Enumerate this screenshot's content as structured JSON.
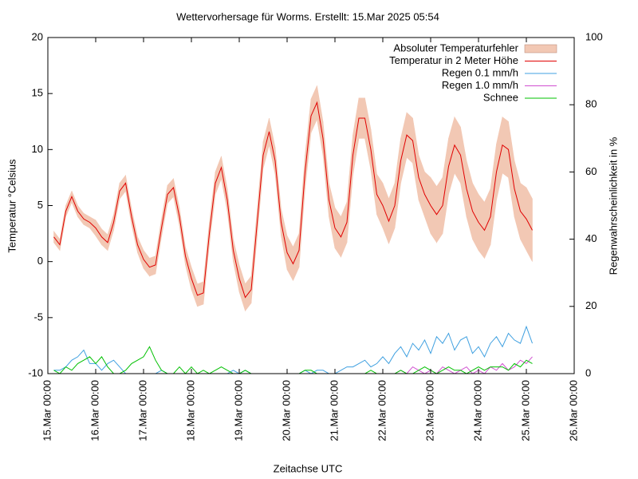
{
  "chart_data": {
    "type": "line",
    "title": "Wettervorhersage für Worms. Erstellt: 15.Mar 2025 05:54",
    "x_label": "Zeitachse UTC",
    "y_label": "Temperatur °Celsius",
    "y2_label": "Regenwahrscheinlichkeit in %",
    "xlim": [
      "15.Mar 00:00",
      "26.Mar 00:00"
    ],
    "xticks": [
      "15.Mar 00:00",
      "16.Mar 00:00",
      "17.Mar 00:00",
      "18.Mar 00:00",
      "19.Mar 00:00",
      "20.Mar 00:00",
      "21.Mar 00:00",
      "22.Mar 00:00",
      "23.Mar 00:00",
      "24.Mar 00:00",
      "25.Mar 00:00",
      "26.Mar 00:00"
    ],
    "ylim": [
      -10,
      20
    ],
    "yticks": [
      -10,
      -5,
      0,
      5,
      10,
      15,
      20
    ],
    "y2lim": [
      0,
      100
    ],
    "y2ticks": [
      0,
      20,
      40,
      60,
      80,
      100
    ],
    "legend": "top-right",
    "x": [
      "15.Mar 03:00",
      "15.Mar 06:00",
      "15.Mar 09:00",
      "15.Mar 12:00",
      "15.Mar 15:00",
      "15.Mar 18:00",
      "15.Mar 21:00",
      "16.Mar 00:00",
      "16.Mar 03:00",
      "16.Mar 06:00",
      "16.Mar 09:00",
      "16.Mar 12:00",
      "16.Mar 15:00",
      "16.Mar 18:00",
      "16.Mar 21:00",
      "17.Mar 00:00",
      "17.Mar 03:00",
      "17.Mar 06:00",
      "17.Mar 09:00",
      "17.Mar 12:00",
      "17.Mar 15:00",
      "17.Mar 18:00",
      "17.Mar 21:00",
      "18.Mar 00:00",
      "18.Mar 03:00",
      "18.Mar 06:00",
      "18.Mar 09:00",
      "18.Mar 12:00",
      "18.Mar 15:00",
      "18.Mar 18:00",
      "18.Mar 21:00",
      "19.Mar 00:00",
      "19.Mar 03:00",
      "19.Mar 06:00",
      "19.Mar 09:00",
      "19.Mar 12:00",
      "19.Mar 15:00",
      "19.Mar 18:00",
      "19.Mar 21:00",
      "20.Mar 00:00",
      "20.Mar 03:00",
      "20.Mar 06:00",
      "20.Mar 09:00",
      "20.Mar 12:00",
      "20.Mar 15:00",
      "20.Mar 18:00",
      "20.Mar 21:00",
      "21.Mar 00:00",
      "21.Mar 03:00",
      "21.Mar 06:00",
      "21.Mar 09:00",
      "21.Mar 12:00",
      "21.Mar 15:00",
      "21.Mar 18:00",
      "21.Mar 21:00",
      "22.Mar 00:00",
      "22.Mar 03:00",
      "22.Mar 06:00",
      "22.Mar 09:00",
      "22.Mar 12:00",
      "22.Mar 15:00",
      "22.Mar 18:00",
      "22.Mar 21:00",
      "23.Mar 00:00",
      "23.Mar 03:00",
      "23.Mar 06:00",
      "23.Mar 09:00",
      "23.Mar 12:00",
      "23.Mar 15:00",
      "23.Mar 18:00",
      "23.Mar 21:00",
      "24.Mar 00:00",
      "24.Mar 03:00",
      "24.Mar 06:00",
      "24.Mar 09:00",
      "24.Mar 12:00",
      "24.Mar 15:00",
      "24.Mar 18:00",
      "24.Mar 21:00",
      "25.Mar 00:00",
      "25.Mar 03:00"
    ],
    "series": [
      {
        "name": "Absoluter Temperaturfehler",
        "color": "#f2c8b4",
        "band_of": 1,
        "values": [
          0.5,
          0.5,
          0.5,
          0.5,
          0.5,
          0.5,
          0.5,
          0.7,
          0.7,
          0.7,
          0.7,
          0.7,
          0.7,
          0.7,
          0.7,
          0.8,
          0.8,
          0.8,
          0.8,
          0.8,
          0.8,
          0.8,
          0.8,
          1.0,
          1.0,
          1.0,
          1.0,
          1.0,
          1.0,
          1.0,
          1.0,
          1.2,
          1.2,
          1.2,
          1.2,
          1.2,
          1.2,
          1.2,
          1.2,
          1.5,
          1.5,
          1.5,
          1.5,
          1.5,
          1.5,
          1.5,
          1.5,
          1.8,
          1.8,
          1.8,
          1.8,
          1.8,
          1.8,
          1.8,
          1.8,
          2.0,
          2.0,
          2.0,
          2.0,
          2.0,
          2.0,
          2.0,
          2.0,
          2.5,
          2.5,
          2.5,
          2.5,
          2.5,
          2.5,
          2.5,
          2.5,
          2.5,
          2.5,
          2.5,
          2.5,
          2.5,
          2.5,
          2.5,
          2.5,
          2.8,
          2.8
        ]
      },
      {
        "name": "Temperatur in 2 Meter Höhe",
        "color": "#e00000",
        "values": [
          2.2,
          1.5,
          4.5,
          5.8,
          4.5,
          3.8,
          3.5,
          3.0,
          2.2,
          1.7,
          3.5,
          6.3,
          7.0,
          4.0,
          1.5,
          0.2,
          -0.5,
          -0.3,
          3.0,
          6.0,
          6.6,
          4.0,
          0.5,
          -1.5,
          -3.0,
          -2.8,
          2.5,
          7.0,
          8.4,
          5.5,
          1.0,
          -1.5,
          -3.2,
          -2.5,
          3.5,
          9.5,
          11.6,
          9.0,
          3.5,
          0.8,
          -0.2,
          1.0,
          8.0,
          13.0,
          14.2,
          11.0,
          5.5,
          3.0,
          2.2,
          3.5,
          9.5,
          12.8,
          12.8,
          10.0,
          6.0,
          5.0,
          3.6,
          5.0,
          9.0,
          11.3,
          10.8,
          7.5,
          6.0,
          5.0,
          4.2,
          5.0,
          8.5,
          10.4,
          9.5,
          6.5,
          4.5,
          3.5,
          2.8,
          4.0,
          8.0,
          10.4,
          10.0,
          6.5,
          4.5,
          3.8,
          2.8
        ]
      },
      {
        "name": "Regen 0.1 mm/h",
        "color": "#3fa0e0",
        "axis": "y2",
        "values": [
          1,
          1,
          2,
          4,
          5,
          7,
          3,
          3,
          1,
          3,
          4,
          2,
          0,
          0,
          0,
          0,
          0,
          0,
          1,
          0,
          0,
          0,
          0,
          0,
          0,
          0,
          0,
          0,
          0,
          0,
          1,
          0,
          1,
          0,
          0,
          0,
          0,
          0,
          0,
          0,
          0,
          0,
          1,
          0,
          1,
          1,
          0,
          0,
          1,
          2,
          2,
          3,
          4,
          2,
          3,
          5,
          3,
          6,
          8,
          5,
          9,
          7,
          10,
          6,
          11,
          9,
          12,
          7,
          10,
          11,
          6,
          8,
          5,
          9,
          11,
          8,
          12,
          10,
          9,
          14,
          9
        ]
      },
      {
        "name": "Regen 1.0 mm/h",
        "color": "#d050d0",
        "axis": "y2",
        "values": [
          0,
          0,
          0,
          0,
          0,
          0,
          0,
          0,
          0,
          0,
          0,
          0,
          0,
          0,
          0,
          0,
          0,
          0,
          0,
          0,
          0,
          0,
          0,
          0,
          0,
          0,
          0,
          0,
          0,
          0,
          0,
          0,
          0,
          0,
          0,
          0,
          0,
          0,
          0,
          0,
          0,
          0,
          0,
          0,
          0,
          0,
          0,
          0,
          0,
          0,
          0,
          0,
          0,
          0,
          0,
          0,
          0,
          0,
          1,
          0,
          2,
          1,
          0,
          1,
          0,
          2,
          1,
          0,
          1,
          2,
          0,
          1,
          0,
          2,
          1,
          3,
          1,
          2,
          4,
          3,
          5
        ]
      },
      {
        "name": "Schnee",
        "color": "#00c000",
        "axis": "y2",
        "values": [
          1,
          0,
          2,
          1,
          3,
          4,
          5,
          3,
          5,
          2,
          0,
          0,
          1,
          3,
          4,
          5,
          8,
          4,
          1,
          0,
          0,
          2,
          0,
          2,
          0,
          1,
          0,
          1,
          2,
          1,
          0,
          0,
          1,
          0,
          0,
          0,
          0,
          0,
          0,
          0,
          0,
          0,
          1,
          1,
          0,
          0,
          0,
          0,
          0,
          0,
          0,
          0,
          0,
          1,
          0,
          0,
          0,
          0,
          1,
          0,
          0,
          1,
          2,
          1,
          0,
          1,
          2,
          1,
          1,
          0,
          1,
          2,
          1,
          2,
          2,
          2,
          1,
          3,
          2,
          4,
          3
        ]
      }
    ]
  }
}
